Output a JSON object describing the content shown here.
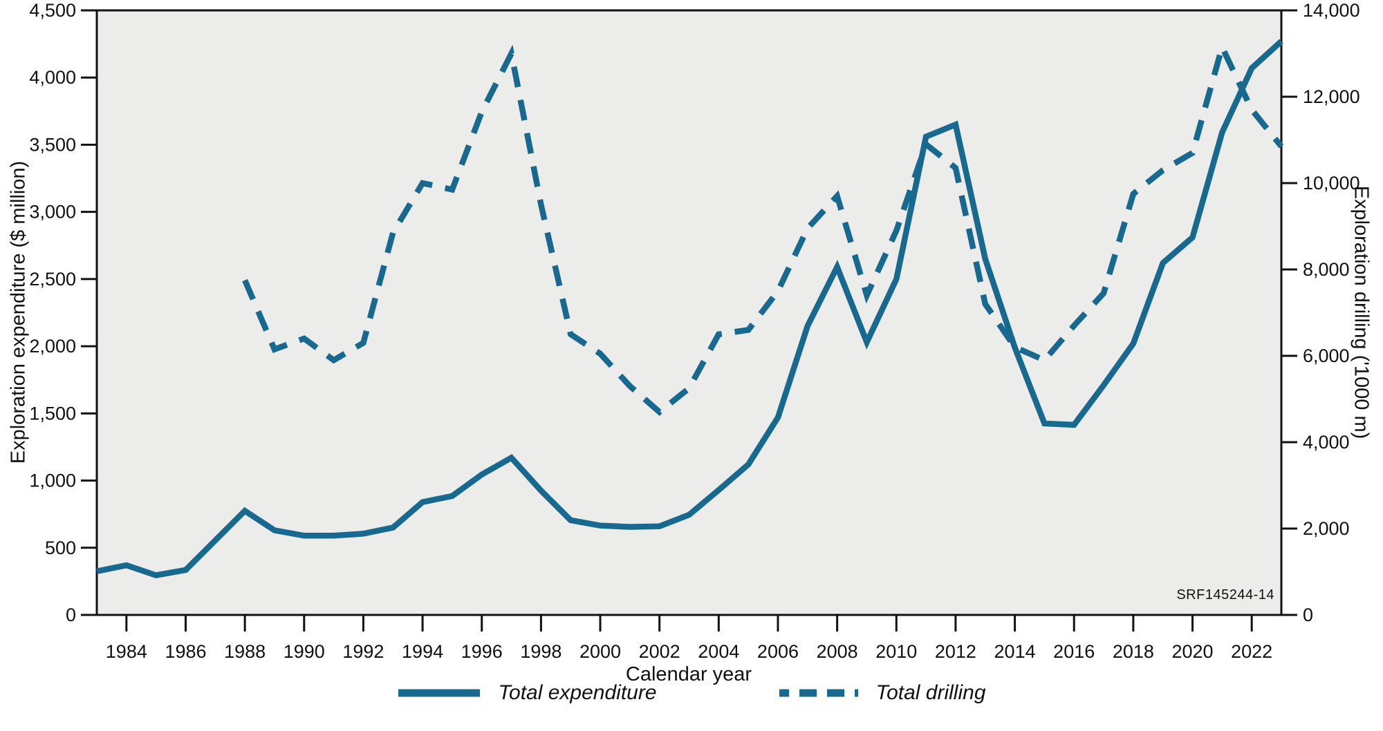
{
  "figure": {
    "id_label": "SRF145244-14",
    "x_axis": {
      "label": "Calendar year",
      "tick_years": [
        1984,
        1986,
        1988,
        1990,
        1992,
        1994,
        1996,
        1998,
        2000,
        2002,
        2004,
        2006,
        2008,
        2010,
        2012,
        2014,
        2016,
        2018,
        2020,
        2022
      ]
    },
    "y_left": {
      "label": "Exploration expenditure ($ million)",
      "range": [
        0,
        4500
      ],
      "tick_values": [
        0,
        500,
        1000,
        1500,
        2000,
        2500,
        3000,
        3500,
        4000,
        4500
      ],
      "tick_labels": [
        "0",
        "500",
        "1,000",
        "1,500",
        "2,000",
        "2,500",
        "3,000",
        "3,500",
        "4,000",
        "4,500"
      ]
    },
    "y_right": {
      "label": "Exploration drilling ('1000 m)",
      "range": [
        0,
        14000
      ],
      "tick_values": [
        0,
        2000,
        4000,
        6000,
        8000,
        10000,
        12000,
        14000
      ],
      "tick_labels": [
        "0",
        "2,000",
        "4,000",
        "6,000",
        "8,000",
        "10,000",
        "12,000",
        "14,000"
      ]
    },
    "colors": {
      "line": "#17698F",
      "plot_bg": "#ECECEB",
      "axis": "#111111"
    }
  },
  "legend": [
    {
      "label": "Total expenditure",
      "style": "solid"
    },
    {
      "label": "Total drilling",
      "style": "dashed"
    }
  ],
  "chart_data": {
    "type": "line",
    "title": "",
    "xlabel": "Calendar year",
    "ylabel_left": "Exploration expenditure ($ million)",
    "ylabel_right": "Exploration drilling ('1000 m)",
    "x_range": [
      1983,
      2023
    ],
    "y_left_range": [
      0,
      4500
    ],
    "y_right_range": [
      0,
      14000
    ],
    "grid": false,
    "legend_position": "bottom",
    "x": [
      1983,
      1984,
      1985,
      1986,
      1987,
      1988,
      1989,
      1990,
      1991,
      1992,
      1993,
      1994,
      1995,
      1996,
      1997,
      1998,
      1999,
      2000,
      2001,
      2002,
      2003,
      2004,
      2005,
      2006,
      2007,
      2008,
      2009,
      2010,
      2011,
      2012,
      2013,
      2014,
      2015,
      2016,
      2017,
      2018,
      2019,
      2020,
      2021,
      2022,
      2023
    ],
    "series": [
      {
        "name": "Total expenditure",
        "axis": "left",
        "style": "solid",
        "values": [
          325,
          370,
          295,
          335,
          555,
          775,
          630,
          590,
          590,
          605,
          650,
          840,
          885,
          1045,
          1170,
          925,
          705,
          665,
          655,
          660,
          745,
          930,
          1120,
          1470,
          2150,
          2590,
          2030,
          2500,
          3560,
          3650,
          2650,
          1990,
          1425,
          1415,
          1710,
          2020,
          2620,
          2810,
          3590,
          4070,
          4270
        ]
      },
      {
        "name": "Total drilling",
        "axis": "right",
        "style": "dashed",
        "values": [
          null,
          null,
          null,
          null,
          null,
          7750,
          6150,
          6400,
          5900,
          6300,
          8850,
          10000,
          9850,
          11650,
          13000,
          9500,
          6500,
          6050,
          5300,
          4700,
          5250,
          6500,
          6600,
          7500,
          8950,
          9700,
          7400,
          8900,
          10900,
          10350,
          7200,
          6200,
          5900,
          6700,
          7450,
          9750,
          10300,
          10700,
          13150,
          11700,
          10850
        ]
      }
    ]
  }
}
